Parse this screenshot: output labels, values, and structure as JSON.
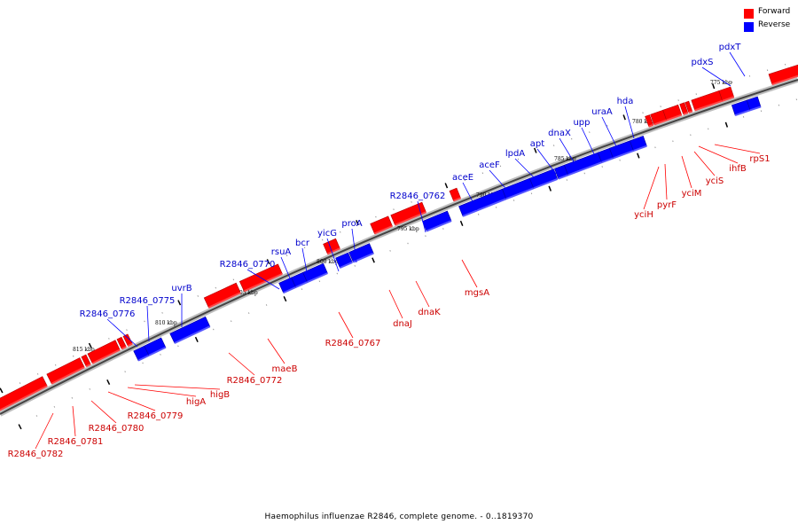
{
  "legend": {
    "forward": {
      "label": "Forward",
      "color": "#ff0000"
    },
    "reverse": {
      "label": "Reverse",
      "color": "#0000ff"
    }
  },
  "caption": "Haemophilus influenzae R2846, complete genome. - 0..1819370",
  "ticks": [
    "775 kbp",
    "780 kbp",
    "785 kbp",
    "790 kbp",
    "795 kbp",
    "800 kbp",
    "805 kbp",
    "810 kbp",
    "815 kbp"
  ],
  "genes": {
    "pdxT": "pdxT",
    "pdxS": "pdxS",
    "hda": "hda",
    "uraA": "uraA",
    "upp": "upp",
    "dnaX": "dnaX",
    "apt": "apt",
    "lpdA": "lpdA",
    "aceF": "aceF",
    "aceE": "aceE",
    "R2846_0762": "R2846_0762",
    "proA": "proA",
    "yicG": "yicG",
    "bcr": "bcr",
    "rsuA": "rsuA",
    "R2846_0770": "R2846_0770",
    "uvrB": "uvrB",
    "R2846_0775": "R2846_0775",
    "R2846_0776": "R2846_0776",
    "rpS1": "rpS1",
    "ihfB": "ihfB",
    "yciS": "yciS",
    "yciM": "yciM",
    "pyrF": "pyrF",
    "yciH": "yciH",
    "mgsA": "mgsA",
    "dnaK": "dnaK",
    "dnaJ": "dnaJ",
    "R2846_0767": "R2846_0767",
    "maeB": "maeB",
    "R2846_0772": "R2846_0772",
    "higB": "higB",
    "higA": "higA",
    "R2846_0779": "R2846_0779",
    "R2846_0780": "R2846_0780",
    "R2846_0781": "R2846_0781",
    "R2846_0782": "R2846_0782"
  }
}
